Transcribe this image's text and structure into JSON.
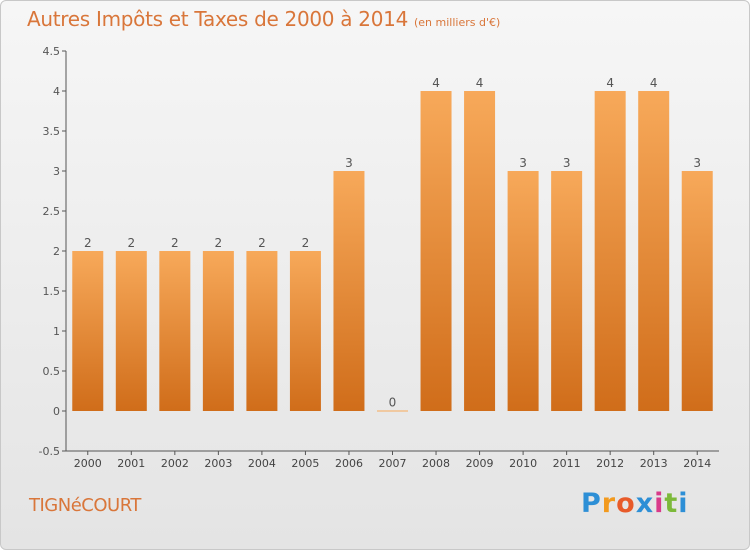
{
  "header": {
    "title": "Autres Impôts et Taxes de 2000 à 2014",
    "subtitle": "(en milliers d'€)"
  },
  "footer": {
    "commune": "TIGNéCOURT",
    "logo_text": "Proxiti"
  },
  "colors": {
    "accent": "#d9763a",
    "bar_top": "#f7a95a",
    "bar_bottom": "#d06d1a",
    "axis": "#555555"
  },
  "chart_data": {
    "type": "bar",
    "categories": [
      "2000",
      "2001",
      "2002",
      "2003",
      "2004",
      "2005",
      "2006",
      "2007",
      "2008",
      "2009",
      "2010",
      "2011",
      "2012",
      "2013",
      "2014"
    ],
    "values": [
      2,
      2,
      2,
      2,
      2,
      2,
      3,
      0,
      4,
      4,
      3,
      3,
      4,
      4,
      3
    ],
    "data_labels": [
      "2",
      "2",
      "2",
      "2",
      "2",
      "2",
      "3",
      "0",
      "4",
      "4",
      "3",
      "3",
      "4",
      "4",
      "3"
    ],
    "title": "Autres Impôts et Taxes de 2000 à 2014",
    "subtitle": "(en milliers d'€)",
    "ylim": [
      -0.5,
      4.5
    ],
    "yticks": [
      -0.5,
      0,
      0.5,
      1,
      1.5,
      2,
      2.5,
      3,
      3.5,
      4,
      4.5
    ],
    "ytick_labels": [
      "-0.5",
      "0",
      "0.5",
      "1",
      "1.5",
      "2",
      "2.5",
      "3",
      "3.5",
      "4",
      "4.5"
    ],
    "grid": false,
    "legend": "none"
  }
}
